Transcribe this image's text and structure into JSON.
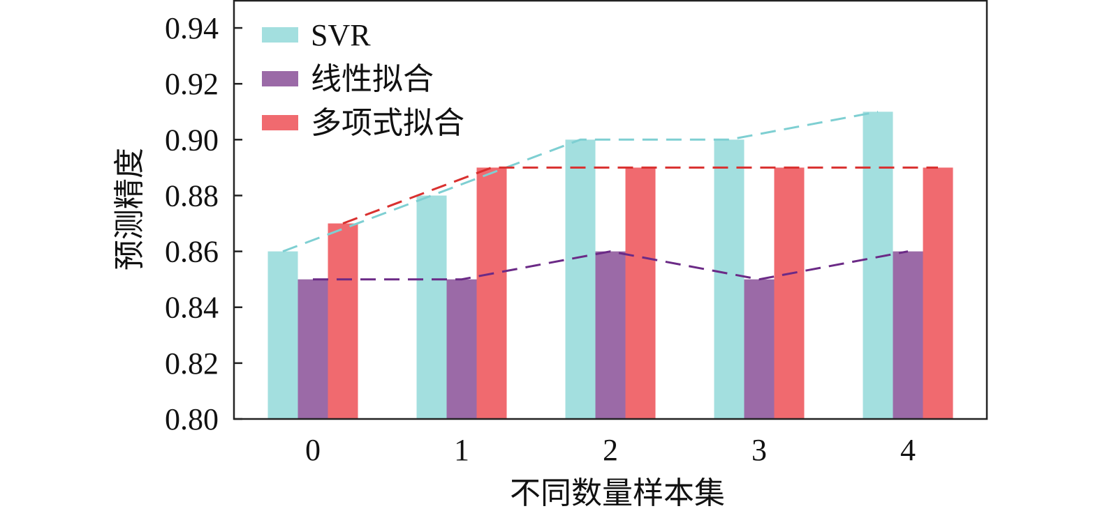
{
  "chart_data": {
    "type": "bar",
    "title": "",
    "xlabel": "不同数量样本集",
    "ylabel": "预测精度",
    "categories": [
      "0",
      "1",
      "2",
      "3",
      "4"
    ],
    "ylim": [
      0.8,
      0.95
    ],
    "yticks": [
      "0.80",
      "0.82",
      "0.84",
      "0.86",
      "0.88",
      "0.90",
      "0.92",
      "0.94"
    ],
    "legend_position": "top-left",
    "grid": false,
    "series": [
      {
        "name": "SVR",
        "color": "#a3dfdf",
        "line_color": "#7ecfd2",
        "values": [
          0.86,
          0.88,
          0.9,
          0.9,
          0.91
        ]
      },
      {
        "name": "线性拟合",
        "color": "#9b6aa7",
        "line_color": "#6b2a86",
        "values": [
          0.85,
          0.85,
          0.86,
          0.85,
          0.86
        ]
      },
      {
        "name": "多项式拟合",
        "color": "#f06a6f",
        "line_color": "#d9302f",
        "values": [
          0.87,
          0.89,
          0.89,
          0.89,
          0.89
        ]
      }
    ]
  }
}
